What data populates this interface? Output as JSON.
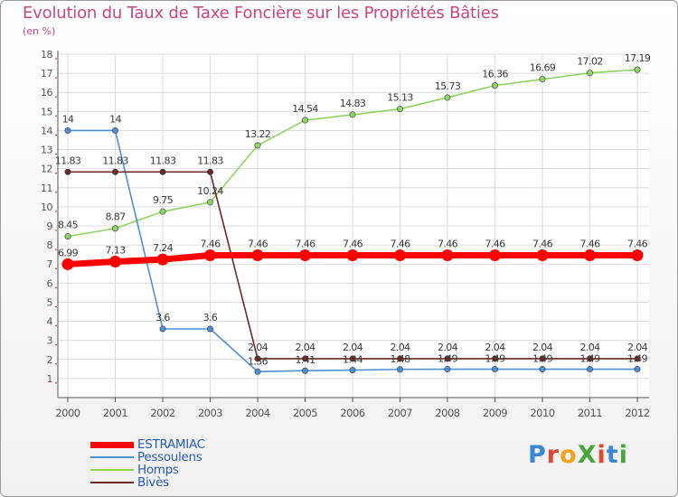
{
  "header": {
    "title": "Evolution du Taux de Taxe Foncière sur les Propriétés Bâties",
    "unit": "(en %)"
  },
  "logo": {
    "text": "ProXiti"
  },
  "colors": {
    "title": "#c8467e",
    "grid": "#dcdcdc",
    "axis": "#555555",
    "tick_red": "#d62020",
    "label_text": "#3a3a3a",
    "legend_text": "#2a5bb0"
  },
  "chart_data": {
    "type": "line",
    "title": "Evolution du Taux de Taxe Foncière sur les Propriétés Bâties",
    "ylabel": "(en %)",
    "xlabel": "",
    "x": [
      "2000",
      "2001",
      "2002",
      "2003",
      "2004",
      "2005",
      "2006",
      "2007",
      "2008",
      "2009",
      "2010",
      "2011",
      "2012"
    ],
    "ylim": [
      0,
      18
    ],
    "yticks": [
      1,
      2,
      3,
      4,
      5,
      6,
      7,
      8,
      9,
      10,
      11,
      12,
      13,
      14,
      15,
      16,
      17,
      18
    ],
    "grid": true,
    "legend_position": "bottom-left",
    "series": [
      {
        "name": "ESTRAMIAC",
        "color": "#ff0000",
        "values": [
          6.99,
          7.13,
          7.24,
          7.46,
          7.46,
          7.46,
          7.46,
          7.46,
          7.46,
          7.46,
          7.46,
          7.46,
          7.46
        ],
        "labels": [
          "6.99",
          "7.13",
          "7.24",
          "7.46",
          "7.46",
          "7.46",
          "7.46",
          "7.46",
          "7.46",
          "7.46",
          "7.46",
          "7.46",
          "7.46"
        ]
      },
      {
        "name": "Pessoulens",
        "color": "#4d8fd1",
        "values": [
          14,
          14,
          3.6,
          3.6,
          1.36,
          1.41,
          1.44,
          1.48,
          1.49,
          1.49,
          1.49,
          1.49,
          1.49
        ],
        "labels": [
          "14",
          "14",
          "3.6",
          "3.6",
          "1.36",
          "1.41",
          "1.44",
          "1.48",
          "1.49",
          "1.49",
          "1.49",
          "1.49",
          "1.49"
        ]
      },
      {
        "name": "Homps",
        "color": "#8ed462",
        "values": [
          8.45,
          8.87,
          9.75,
          10.24,
          13.22,
          14.54,
          14.83,
          15.13,
          15.73,
          16.36,
          16.69,
          17.02,
          17.19
        ],
        "labels": [
          "8.45",
          "8.87",
          "9.75",
          "10.24",
          "13.22",
          "14.54",
          "14.83",
          "15.13",
          "15.73",
          "16.36",
          "16.69",
          "17.02",
          "17.19"
        ]
      },
      {
        "name": "Bivès",
        "color": "#6b2a2a",
        "values": [
          11.83,
          11.83,
          11.83,
          11.83,
          2.04,
          2.04,
          2.04,
          2.04,
          2.04,
          2.04,
          2.04,
          2.04,
          2.04
        ],
        "labels": [
          "11.83",
          "11.83",
          "11.83",
          "11.83",
          "2.04",
          "2.04",
          "2.04",
          "2.04",
          "2.04",
          "2.04",
          "2.04",
          "2.04",
          "2.04"
        ]
      }
    ]
  }
}
